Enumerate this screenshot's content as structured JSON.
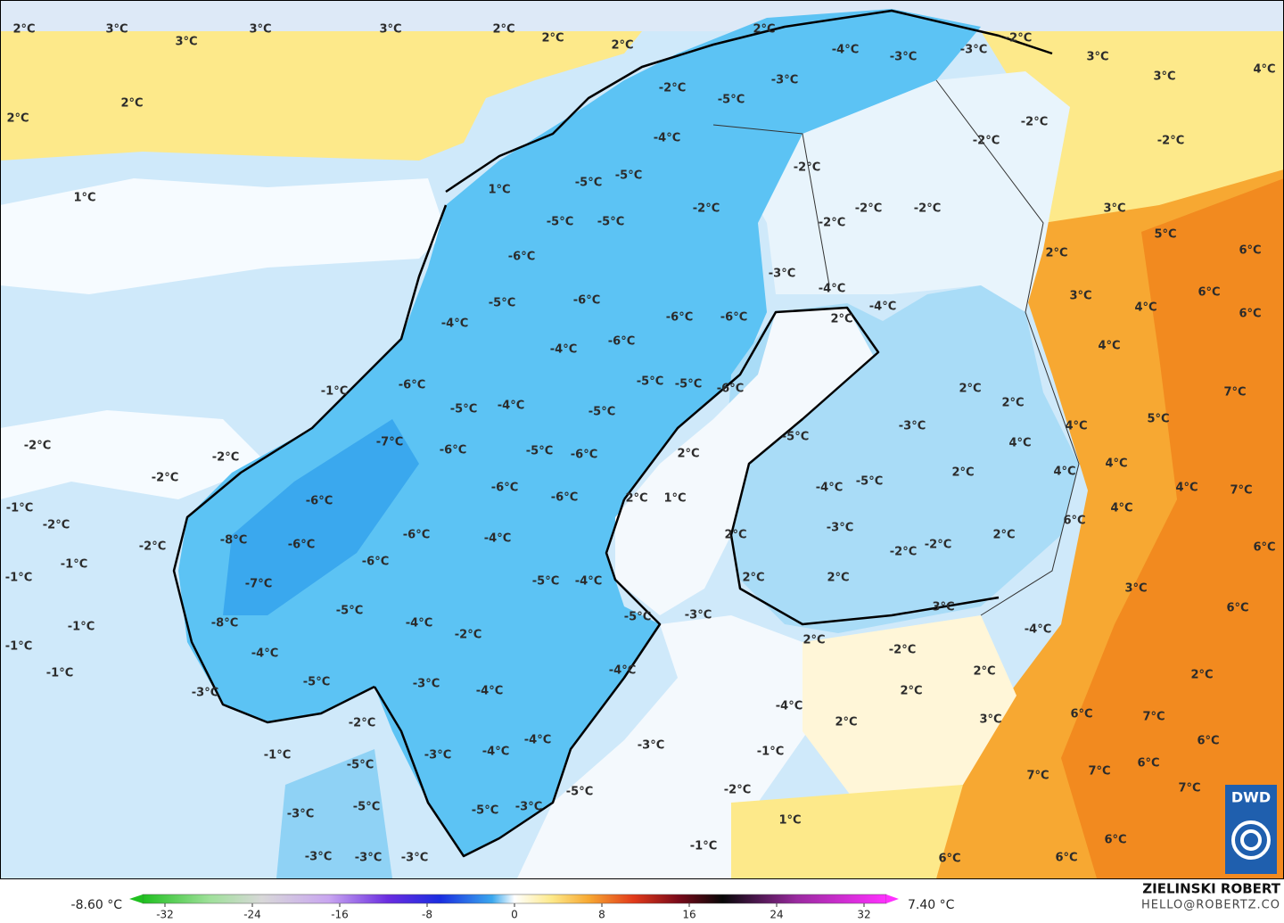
{
  "map_labels": [
    "2°C",
    "3°C",
    "3°C",
    "3°C",
    "3°C",
    "2°C",
    "2°C",
    "2°C",
    "2°C",
    "2°C",
    "2°C",
    "1°C",
    "1°C",
    "-4°C",
    "-3°C",
    "-3°C",
    "-2°C",
    "3°C",
    "3°C",
    "4°C",
    "-2°C",
    "-5°C",
    "-3°C",
    "-4°C",
    "-2°C",
    "-2°C",
    "-2°C",
    "-5°C",
    "-5°C",
    "-2°C",
    "-2°C",
    "-2°C",
    "-2°C",
    "-2°C",
    "3°C",
    "5°C",
    "6°C",
    "-5°C",
    "-5°C",
    "-6°C",
    "2°C",
    "-3°C",
    "-4°C",
    "3°C",
    "6°C",
    "4°C",
    "6°C",
    "-5°C",
    "-6°C",
    "-6°C",
    "-6°C",
    "2°C",
    "-4°C",
    "-4°C",
    "-6°C",
    "-4°C",
    "4°C",
    "-1°C",
    "-6°C",
    "-5°C",
    "-5°C",
    "-6°C",
    "2°C",
    "2°C",
    "7°C",
    "-4°C",
    "-5°C",
    "-5°C",
    "5°C",
    "4°C",
    "-2°C",
    "-7°C",
    "-6°C",
    "-5°C",
    "-6°C",
    "2°C",
    "-5°C",
    "-3°C",
    "4°C",
    "-2°C",
    "4°C",
    "4°C",
    "-2°C",
    "2°C",
    "-6°C",
    "-4°C",
    "-5°C",
    "4°C",
    "7°C",
    "2°C",
    "1°C",
    "-6°C",
    "-6°C",
    "4°C",
    "-1°C",
    "-2°C",
    "6°C",
    "-2°C",
    "-8°C",
    "-6°C",
    "-6°C",
    "-4°C",
    "-3°C",
    "2°C",
    "2°C",
    "-2°C",
    "-2°C",
    "6°C",
    "-1°C",
    "-1°C",
    "-7°C",
    "-6°C",
    "-5°C",
    "-4°C",
    "2°C",
    "2°C",
    "3°C",
    "6°C",
    "-1°C",
    "-8°C",
    "-5°C",
    "-4°C",
    "-2°C",
    "-5°C",
    "-3°C",
    "3°C",
    "-4°C",
    "2°C",
    "-2°C",
    "-1°C",
    "-4°C",
    "-1°C",
    "2°C",
    "-5°C",
    "-3°C",
    "-4°C",
    "-4°C",
    "2°C",
    "2°C",
    "-3°C",
    "-4°C",
    "-2°C",
    "3°C",
    "6°C",
    "7°C",
    "6°C",
    "2°C",
    "-1°C",
    "-3°C",
    "-4°C",
    "-4°C",
    "-3°C",
    "-1°C",
    "-5°C",
    "-5°C",
    "7°C",
    "7°C",
    "6°C",
    "7°C",
    "-5°C",
    "-2°C",
    "-3°C",
    "-5°C",
    "-3°C",
    "1°C",
    "-1°C",
    "6°C",
    "-3°C",
    "-3°C",
    "-3°C",
    "6°C",
    "6°C"
  ],
  "colorbar": {
    "min_label": "-8.60 °C",
    "max_label": "7.40 °C",
    "ticks": [
      -32,
      -24,
      -16,
      -8,
      0,
      8,
      16,
      24,
      32
    ]
  },
  "credit": {
    "author": "ZIELINSKI ROBERT",
    "contact": "HELLO@ROBERTZ.CO"
  },
  "logo": "DWD"
}
